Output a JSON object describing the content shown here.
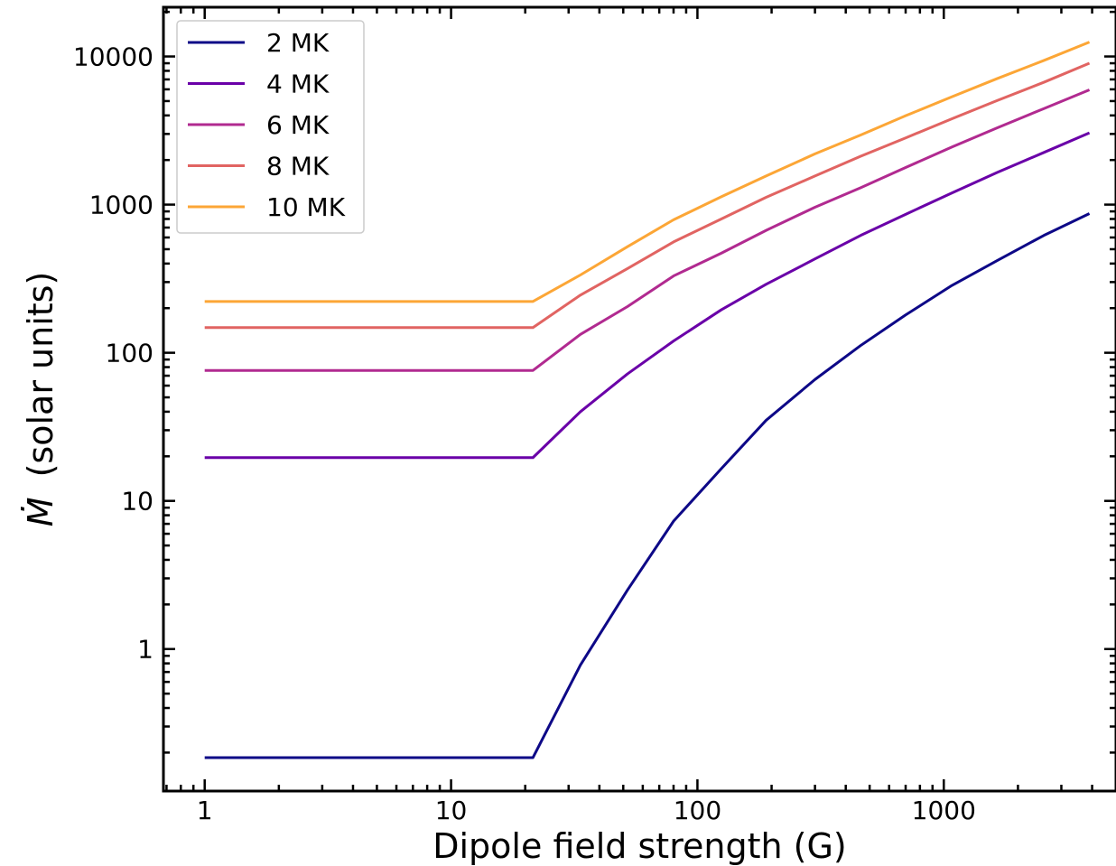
{
  "chart_data": {
    "type": "line",
    "title": "",
    "xlabel": "Dipole field strength (G)",
    "ylabel_symbol": "Ṁ",
    "ylabel_text": "(solar units)",
    "xscale": "log",
    "yscale": "log",
    "xlim": [
      0.68,
      5000
    ],
    "ylim": [
      0.11,
      21500
    ],
    "x_ticks": [
      {
        "value": 1,
        "label": "1"
      },
      {
        "value": 10,
        "label": "10"
      },
      {
        "value": 100,
        "label": "100"
      },
      {
        "value": 1000,
        "label": "1000"
      }
    ],
    "y_ticks": [
      {
        "value": 1,
        "label": "1"
      },
      {
        "value": 10,
        "label": "10"
      },
      {
        "value": 100,
        "label": "100"
      },
      {
        "value": 1000,
        "label": "1000"
      },
      {
        "value": 10000,
        "label": "10000"
      }
    ],
    "legend_position": "upper-left",
    "grid": false,
    "series": [
      {
        "name": "2 MK",
        "color": "#0d0887",
        "points": [
          [
            1,
            0.185
          ],
          [
            21.5,
            0.185
          ],
          [
            33.5,
            0.78
          ],
          [
            52,
            2.5
          ],
          [
            80,
            7.3
          ],
          [
            125,
            16.5
          ],
          [
            190,
            35
          ],
          [
            300,
            66
          ],
          [
            460,
            112
          ],
          [
            700,
            180
          ],
          [
            1080,
            285
          ],
          [
            1650,
            420
          ],
          [
            2550,
            620
          ],
          [
            3900,
            870
          ]
        ]
      },
      {
        "name": "4 MK",
        "color": "#6a00a8",
        "points": [
          [
            1,
            19.6
          ],
          [
            21.5,
            19.6
          ],
          [
            33.5,
            40
          ],
          [
            52,
            72
          ],
          [
            80,
            120
          ],
          [
            125,
            195
          ],
          [
            190,
            290
          ],
          [
            300,
            430
          ],
          [
            460,
            620
          ],
          [
            700,
            860
          ],
          [
            1080,
            1200
          ],
          [
            1650,
            1650
          ],
          [
            2550,
            2250
          ],
          [
            3900,
            3050
          ]
        ]
      },
      {
        "name": "6 MK",
        "color": "#b12a90",
        "points": [
          [
            1,
            76
          ],
          [
            21.5,
            76
          ],
          [
            33.5,
            133
          ],
          [
            52,
            205
          ],
          [
            80,
            330
          ],
          [
            125,
            470
          ],
          [
            190,
            670
          ],
          [
            300,
            960
          ],
          [
            460,
            1300
          ],
          [
            700,
            1780
          ],
          [
            1080,
            2450
          ],
          [
            1650,
            3300
          ],
          [
            2550,
            4450
          ],
          [
            3900,
            5950
          ]
        ]
      },
      {
        "name": "8 MK",
        "color": "#e16462",
        "points": [
          [
            1,
            148
          ],
          [
            21.5,
            148
          ],
          [
            33.5,
            245
          ],
          [
            52,
            370
          ],
          [
            80,
            560
          ],
          [
            125,
            800
          ],
          [
            190,
            1120
          ],
          [
            300,
            1560
          ],
          [
            460,
            2120
          ],
          [
            700,
            2820
          ],
          [
            1080,
            3800
          ],
          [
            1650,
            5050
          ],
          [
            2550,
            6700
          ],
          [
            3900,
            9000
          ]
        ]
      },
      {
        "name": "10 MK",
        "color": "#fca636",
        "points": [
          [
            1,
            222
          ],
          [
            21.5,
            222
          ],
          [
            33.5,
            335
          ],
          [
            52,
            520
          ],
          [
            80,
            790
          ],
          [
            125,
            1130
          ],
          [
            190,
            1560
          ],
          [
            300,
            2200
          ],
          [
            460,
            2950
          ],
          [
            700,
            3980
          ],
          [
            1080,
            5350
          ],
          [
            1650,
            7100
          ],
          [
            2550,
            9400
          ],
          [
            3900,
            12500
          ]
        ]
      }
    ]
  }
}
